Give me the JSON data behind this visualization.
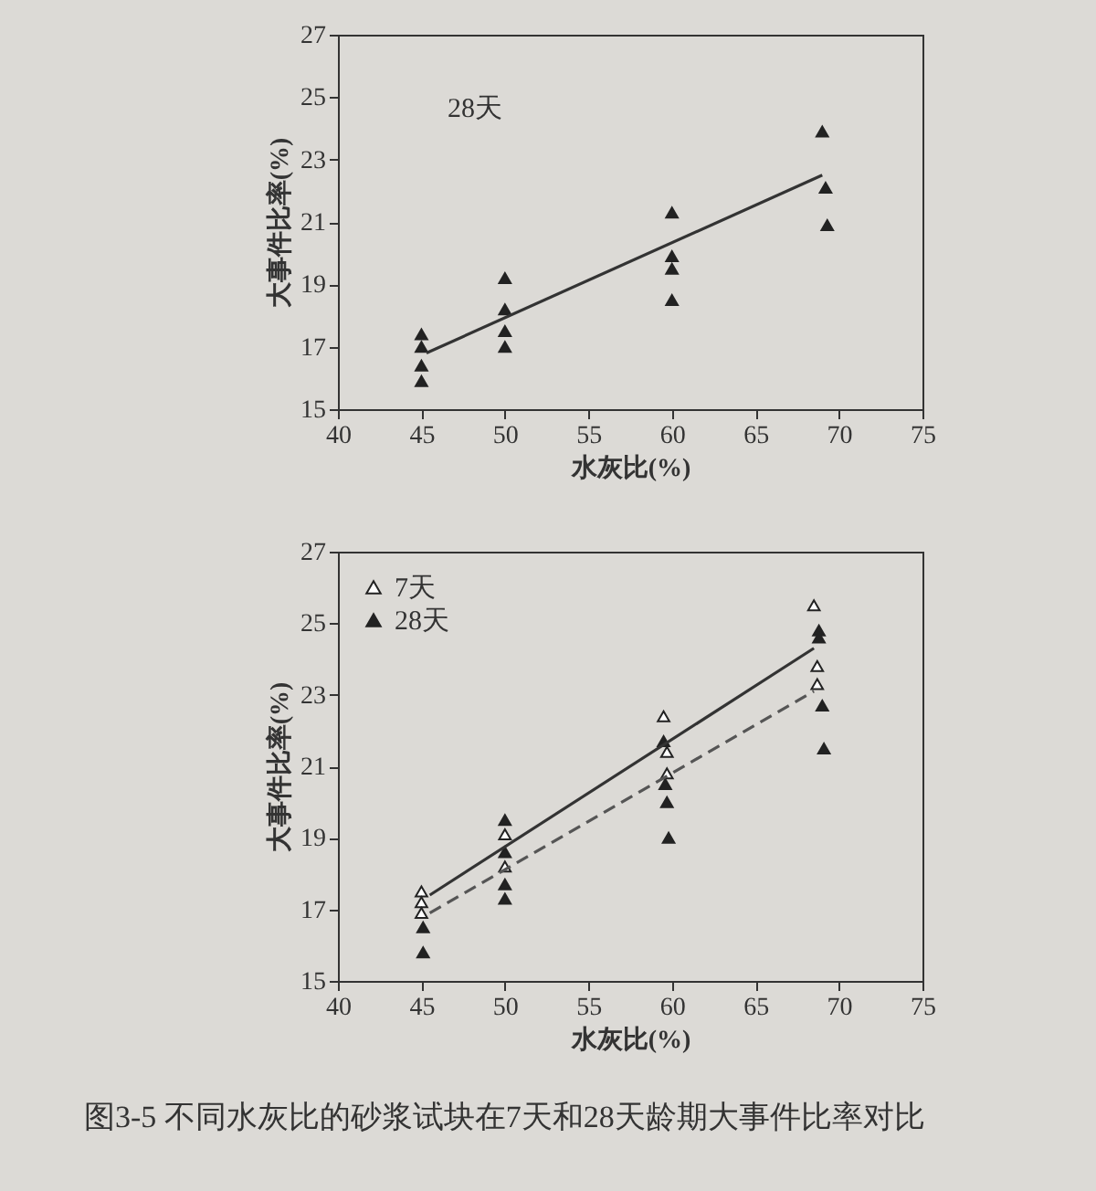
{
  "chart_data": [
    {
      "type": "scatter",
      "xlabel": "水灰比(%)",
      "ylabel": "大事件比率(%)",
      "xlim": [
        40,
        75
      ],
      "xticks": [
        40,
        45,
        50,
        55,
        60,
        65,
        70,
        75
      ],
      "ylim": [
        15,
        27
      ],
      "yticks": [
        15,
        17,
        19,
        21,
        23,
        25,
        27
      ],
      "grid": false,
      "series": [
        {
          "marker": "triangle",
          "color": "#222222",
          "x": [
            45,
            45,
            45,
            45,
            50,
            50,
            50,
            50,
            60,
            60,
            60,
            60,
            69,
            69.2,
            69.3
          ],
          "values": [
            17.4,
            17.0,
            16.4,
            15.9,
            19.2,
            18.2,
            17.5,
            17.0,
            21.3,
            19.9,
            19.5,
            18.5,
            23.9,
            22.1,
            20.9
          ]
        },
        {
          "type": "line",
          "color": "#333333",
          "line_style": "solid",
          "x": [
            45.3,
            69
          ],
          "values": [
            16.8,
            22.5
          ]
        }
      ],
      "annotations": [
        "28天"
      ]
    },
    {
      "type": "scatter",
      "xlabel": "水灰比(%)",
      "ylabel": "大事件比率(%)",
      "xlim": [
        40,
        75
      ],
      "xticks": [
        40,
        45,
        50,
        55,
        60,
        65,
        70,
        75
      ],
      "ylim": [
        15,
        27
      ],
      "yticks": [
        15,
        17,
        19,
        21,
        23,
        25,
        27
      ],
      "grid": false,
      "legend": "top left",
      "series": [
        {
          "name": "7天",
          "marker": "triangle",
          "color": "#ffffff",
          "x": [
            45,
            45,
            45,
            50,
            50,
            59.5,
            59.7,
            59.7,
            68.5,
            68.7,
            68.7
          ],
          "values": [
            17.5,
            17.2,
            16.9,
            19.1,
            18.2,
            22.4,
            21.4,
            20.8,
            25.5,
            23.8,
            23.3
          ]
        },
        {
          "name": "28天",
          "marker": "triangle",
          "color": "#222222",
          "x": [
            45.1,
            45.1,
            50,
            50,
            50,
            50,
            59.5,
            59.6,
            59.7,
            59.8,
            68.8,
            68.8,
            69,
            69.1
          ],
          "values": [
            16.5,
            15.8,
            19.5,
            18.6,
            17.7,
            17.3,
            21.7,
            20.5,
            20.0,
            19.0,
            24.8,
            24.6,
            22.7,
            21.5
          ]
        },
        {
          "type": "line",
          "color": "#333333",
          "line_style": "solid",
          "x": [
            45.5,
            68.5
          ],
          "values": [
            17.4,
            24.3
          ]
        },
        {
          "type": "line",
          "color": "#555555",
          "line_style": "dashed",
          "x": [
            45.5,
            68.5
          ],
          "values": [
            16.9,
            23.1
          ]
        }
      ],
      "annotations": [
        "图3-5  不同水灰比的砂浆试块在7天和28天龄期大事件比率对比"
      ]
    }
  ]
}
